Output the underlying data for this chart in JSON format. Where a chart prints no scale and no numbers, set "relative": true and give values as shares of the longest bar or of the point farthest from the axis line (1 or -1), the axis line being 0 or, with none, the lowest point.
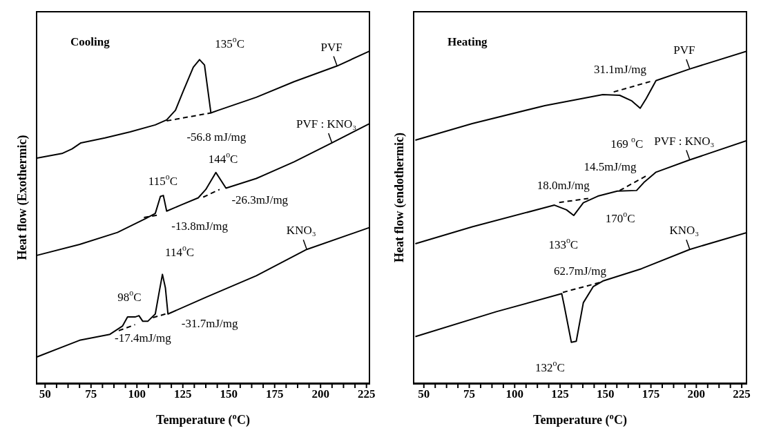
{
  "chart_data": [
    {
      "type": "line",
      "title": "Cooling",
      "xlabel": "Temperature ($^{o}$C)",
      "ylabel": "Heat flow (Exothermic)",
      "relative": true,
      "marker": "none",
      "xlim": [
        45,
        227
      ],
      "xticks": [
        50,
        {
          "value": 56.25,
          "label": null
        },
        {
          "value": 62.5,
          "label": null
        },
        {
          "value": 68.75,
          "label": null
        },
        75,
        {
          "value": 81.25,
          "label": null
        },
        {
          "value": 87.5,
          "label": null
        },
        {
          "value": 93.75,
          "label": null
        },
        100,
        {
          "value": 106.25,
          "label": null
        },
        {
          "value": 112.5,
          "label": null
        },
        {
          "value": 118.75,
          "label": null
        },
        125,
        {
          "value": 131.25,
          "label": null
        },
        {
          "value": 137.5,
          "label": null
        },
        {
          "value": 143.75,
          "label": null
        },
        150,
        {
          "value": 156.25,
          "label": null
        },
        {
          "value": 162.5,
          "label": null
        },
        {
          "value": 168.75,
          "label": null
        },
        175,
        {
          "value": 181.25,
          "label": null
        },
        {
          "value": 187.5,
          "label": null
        },
        {
          "value": 193.75,
          "label": null
        },
        200,
        {
          "value": 206.25,
          "label": null
        },
        {
          "value": 212.5,
          "label": null
        },
        {
          "value": 218.75,
          "label": null
        },
        225
      ],
      "series": [
        {
          "name": "PVF",
          "color": "#000000",
          "x": [
            45.5,
            59.2,
            64.7,
            69.5,
            82.6,
            96.3,
            110,
            116.2,
            121,
            125.2,
            130.7,
            134.1,
            136.8,
            140.3,
            144.4,
            165,
            185.6,
            209,
            226.8
          ],
          "values": [
            0.678,
            0.692,
            0.706,
            0.724,
            0.739,
            0.757,
            0.778,
            0.793,
            0.822,
            0.879,
            0.951,
            0.974,
            0.958,
            0.814,
            0.822,
            0.861,
            0.908,
            0.955,
            1.0
          ]
        },
        {
          "color": "#000000",
          "line_style": "dashed",
          "x": [
            116.2,
            140.3
          ],
          "values": [
            0.79,
            0.814
          ]
        },
        {
          "name": "PVF : KNO₃",
          "color": "#000000",
          "x": [
            45.5,
            68.8,
            89.4,
            104.5,
            110,
            112.8,
            114.4,
            116.2,
            123.8,
            133.4,
            137.5,
            143,
            148.5,
            165,
            185.6,
            206.2,
            226.8
          ],
          "values": [
            0.386,
            0.419,
            0.455,
            0.496,
            0.512,
            0.563,
            0.566,
            0.519,
            0.537,
            0.559,
            0.584,
            0.635,
            0.588,
            0.617,
            0.667,
            0.724,
            0.782
          ]
        },
        {
          "color": "#000000",
          "line_style": "dashed",
          "x": [
            103.8,
            111.3
          ],
          "values": [
            0.5,
            0.507
          ]
        },
        {
          "color": "#000000",
          "line_style": "dashed",
          "x": [
            136.1,
            145
          ],
          "values": [
            0.561,
            0.584
          ]
        },
        {
          "name": "KNO₃",
          "color": "#000000",
          "x": [
            45.5,
            68.8,
            85.3,
            92.2,
            94.9,
            99,
            101.1,
            103.2,
            105.9,
            110,
            112.1,
            113.9,
            115.5,
            116.9,
            137.5,
            165,
            192.5,
            226.8
          ],
          "values": [
            0.081,
            0.131,
            0.149,
            0.174,
            0.201,
            0.201,
            0.205,
            0.188,
            0.188,
            0.21,
            0.275,
            0.329,
            0.289,
            0.21,
            0.26,
            0.325,
            0.404,
            0.47
          ]
        },
        {
          "color": "#000000",
          "line_style": "dashed",
          "x": [
            90.1,
            99
          ],
          "values": [
            0.16,
            0.178
          ]
        },
        {
          "color": "#000000",
          "line_style": "dashed",
          "x": [
            108.7,
            115.5
          ],
          "values": [
            0.199,
            0.21
          ]
        }
      ],
      "annotations": [
        "135$^{o}$C",
        "-56.8 mJ/mg",
        "144$^{o}$C",
        "115$^{o}$C",
        "-26.3mJ/mg",
        "-13.8mJ/mg",
        "114$^{o}$C",
        "98$^{o}$C",
        "-31.7mJ/mg",
        "-17.4mJ/mg"
      ]
    },
    {
      "type": "line",
      "title": "Heating",
      "xlabel": "Temperature ($^{o}$C)",
      "ylabel": "Heat flow (endothermic)",
      "relative": true,
      "marker": "none",
      "xlim": [
        44,
        228
      ],
      "xticks": [
        50,
        {
          "value": 56.25,
          "label": null
        },
        {
          "value": 62.5,
          "label": null
        },
        {
          "value": 68.75,
          "label": null
        },
        75,
        {
          "value": 81.25,
          "label": null
        },
        {
          "value": 87.5,
          "label": null
        },
        {
          "value": 93.75,
          "label": null
        },
        100,
        {
          "value": 106.25,
          "label": null
        },
        {
          "value": 112.5,
          "label": null
        },
        {
          "value": 118.75,
          "label": null
        },
        125,
        {
          "value": 131.25,
          "label": null
        },
        {
          "value": 137.5,
          "label": null
        },
        {
          "value": 143.75,
          "label": null
        },
        150,
        {
          "value": 156.25,
          "label": null
        },
        {
          "value": 162.5,
          "label": null
        },
        {
          "value": 168.75,
          "label": null
        },
        175,
        {
          "value": 181.25,
          "label": null
        },
        {
          "value": 187.5,
          "label": null
        },
        {
          "value": 193.75,
          "label": null
        },
        200,
        {
          "value": 206.25,
          "label": null
        },
        {
          "value": 212.5,
          "label": null
        },
        {
          "value": 218.75,
          "label": null
        },
        225
      ],
      "series": [
        {
          "name": "PVF",
          "color": "#000000",
          "x": [
            45.3,
            76.6,
            116.6,
            148.5,
            157.8,
            164.5,
            169.1,
            172.4,
            177.8,
            196.4,
            228
          ],
          "values": [
            0.732,
            0.782,
            0.836,
            0.869,
            0.867,
            0.85,
            0.828,
            0.857,
            0.911,
            0.946,
            1.0
          ]
        },
        {
          "color": "#000000",
          "line_style": "dashed",
          "x": [
            154.5,
            176.4
          ],
          "values": [
            0.877,
            0.911
          ]
        },
        {
          "name": "PVF : KNO₃",
          "color": "#000000",
          "x": [
            45.3,
            76.6,
            121.9,
            128.5,
            132.5,
            137.8,
            145.8,
            156.5,
            167.1,
            171.1,
            177.8,
            196.4,
            228
          ],
          "values": [
            0.421,
            0.472,
            0.537,
            0.523,
            0.506,
            0.544,
            0.564,
            0.579,
            0.581,
            0.605,
            0.636,
            0.673,
            0.731
          ]
        },
        {
          "color": "#000000",
          "line_style": "dashed",
          "x": [
            124.5,
            140.5
          ],
          "values": [
            0.545,
            0.557
          ]
        },
        {
          "color": "#000000",
          "line_style": "dashed",
          "x": [
            157.8,
            173.8
          ],
          "values": [
            0.581,
            0.629
          ]
        },
        {
          "name": "KNO₃",
          "color": "#000000",
          "x": [
            45.3,
            89.9,
            125.9,
            127.2,
            131.2,
            133.9,
            137.8,
            143.2,
            148.5,
            169.8,
            196.4,
            228
          ],
          "values": [
            0.142,
            0.217,
            0.271,
            0.237,
            0.125,
            0.128,
            0.244,
            0.292,
            0.309,
            0.346,
            0.404,
            0.455
          ]
        },
        {
          "color": "#000000",
          "line_style": "dashed",
          "x": [
            126.5,
            147.2
          ],
          "values": [
            0.275,
            0.305
          ]
        }
      ],
      "annotations": [
        "31.1mJ/mg",
        "169 $^{o}$C",
        "14.5mJ/mg",
        "18.0mJ/mg",
        "170$^{o}$C",
        "133$^{o}$C",
        "62.7mJ/mg",
        "132$^{o}$C"
      ]
    }
  ]
}
